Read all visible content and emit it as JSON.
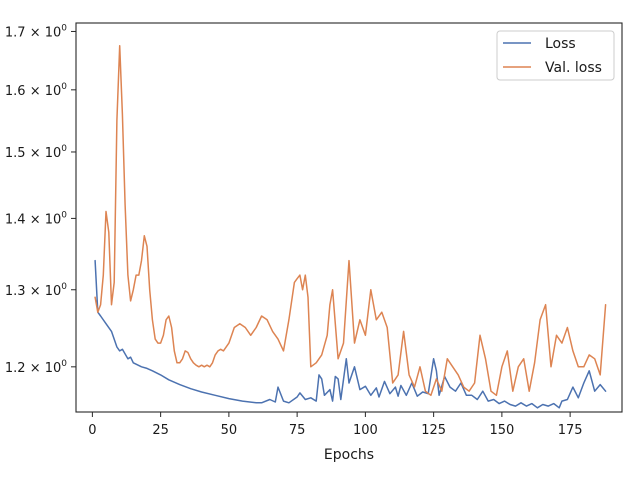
{
  "chart_data": {
    "type": "line",
    "xlabel": "Epochs",
    "ylabel": "",
    "title": "",
    "yscale": "log",
    "xlim": [
      -6,
      194
    ],
    "ylim": [
      1.145,
      1.715
    ],
    "xticks": [
      {
        "value": 0,
        "label": "0"
      },
      {
        "value": 25,
        "label": "25"
      },
      {
        "value": 50,
        "label": "50"
      },
      {
        "value": 75,
        "label": "75"
      },
      {
        "value": 100,
        "label": "100"
      },
      {
        "value": 125,
        "label": "125"
      },
      {
        "value": 150,
        "label": "150"
      },
      {
        "value": 175,
        "label": "175"
      }
    ],
    "yticks": [
      {
        "value": 1.2,
        "base": "1.2",
        "exp": "0"
      },
      {
        "value": 1.3,
        "base": "1.3",
        "exp": "0"
      },
      {
        "value": 1.4,
        "base": "1.4",
        "exp": "0"
      },
      {
        "value": 1.5,
        "base": "1.5",
        "exp": "0"
      },
      {
        "value": 1.6,
        "base": "1.6",
        "exp": "0"
      },
      {
        "value": 1.7,
        "base": "1.7",
        "exp": "0"
      }
    ],
    "legend": {
      "placement": "upper right"
    },
    "grid": false,
    "series": [
      {
        "name": "Loss",
        "color": "#4c72b0",
        "x": [
          1,
          2,
          3,
          5,
          7,
          9,
          10,
          11,
          13,
          14,
          15,
          18,
          20,
          22,
          25,
          28,
          32,
          36,
          40,
          45,
          50,
          55,
          60,
          62,
          65,
          67,
          68,
          70,
          72,
          75,
          76,
          78,
          80,
          82,
          83,
          84,
          85,
          87,
          88,
          89,
          90,
          91,
          93,
          94,
          96,
          98,
          100,
          102,
          104,
          105,
          107,
          109,
          111,
          112,
          113,
          115,
          117,
          119,
          121,
          123,
          125,
          126,
          127,
          129,
          131,
          133,
          135,
          137,
          139,
          141,
          143,
          145,
          147,
          149,
          151,
          153,
          155,
          157,
          159,
          161,
          163,
          165,
          167,
          169,
          171,
          172,
          174,
          176,
          178,
          180,
          182,
          184,
          186,
          188
        ],
        "y": [
          1.34,
          1.27,
          1.265,
          1.255,
          1.245,
          1.225,
          1.22,
          1.222,
          1.21,
          1.212,
          1.205,
          1.2,
          1.198,
          1.195,
          1.19,
          1.184,
          1.178,
          1.173,
          1.169,
          1.165,
          1.161,
          1.158,
          1.156,
          1.156,
          1.16,
          1.157,
          1.175,
          1.158,
          1.156,
          1.163,
          1.168,
          1.16,
          1.162,
          1.158,
          1.19,
          1.185,
          1.165,
          1.172,
          1.158,
          1.188,
          1.185,
          1.16,
          1.21,
          1.18,
          1.2,
          1.172,
          1.176,
          1.165,
          1.174,
          1.163,
          1.182,
          1.167,
          1.175,
          1.164,
          1.177,
          1.165,
          1.18,
          1.164,
          1.169,
          1.167,
          1.21,
          1.195,
          1.165,
          1.188,
          1.175,
          1.17,
          1.18,
          1.165,
          1.165,
          1.16,
          1.17,
          1.158,
          1.16,
          1.155,
          1.158,
          1.154,
          1.152,
          1.156,
          1.152,
          1.155,
          1.15,
          1.154,
          1.152,
          1.155,
          1.15,
          1.158,
          1.16,
          1.175,
          1.162,
          1.18,
          1.195,
          1.17,
          1.178,
          1.17
        ]
      },
      {
        "name": "Val. loss",
        "color": "#dd8452",
        "x": [
          1,
          2,
          3,
          4,
          5,
          6,
          7,
          8,
          9,
          10,
          11,
          12,
          13,
          14,
          15,
          16,
          17,
          18,
          19,
          20,
          21,
          22,
          23,
          24,
          25,
          26,
          27,
          28,
          29,
          30,
          31,
          32,
          33,
          34,
          35,
          36,
          37,
          38,
          39,
          40,
          41,
          42,
          43,
          44,
          45,
          46,
          47,
          48,
          50,
          52,
          54,
          56,
          58,
          60,
          62,
          64,
          66,
          68,
          70,
          72,
          74,
          75,
          76,
          77,
          78,
          79,
          80,
          82,
          84,
          86,
          87,
          88,
          90,
          92,
          94,
          96,
          98,
          100,
          102,
          104,
          106,
          108,
          110,
          112,
          114,
          116,
          118,
          120,
          122,
          124,
          126,
          128,
          130,
          132,
          134,
          136,
          138,
          140,
          142,
          144,
          146,
          148,
          150,
          152,
          154,
          156,
          158,
          160,
          162,
          164,
          166,
          168,
          170,
          172,
          174,
          176,
          178,
          180,
          182,
          184,
          186,
          188
        ],
        "y": [
          1.29,
          1.27,
          1.28,
          1.32,
          1.41,
          1.38,
          1.28,
          1.31,
          1.55,
          1.675,
          1.56,
          1.42,
          1.32,
          1.285,
          1.3,
          1.32,
          1.32,
          1.34,
          1.375,
          1.36,
          1.3,
          1.26,
          1.235,
          1.23,
          1.23,
          1.24,
          1.26,
          1.265,
          1.25,
          1.22,
          1.205,
          1.205,
          1.21,
          1.22,
          1.218,
          1.21,
          1.205,
          1.202,
          1.2,
          1.202,
          1.2,
          1.202,
          1.2,
          1.205,
          1.215,
          1.22,
          1.222,
          1.22,
          1.23,
          1.25,
          1.255,
          1.25,
          1.24,
          1.25,
          1.265,
          1.26,
          1.245,
          1.235,
          1.22,
          1.26,
          1.31,
          1.315,
          1.32,
          1.3,
          1.32,
          1.29,
          1.2,
          1.205,
          1.215,
          1.24,
          1.28,
          1.3,
          1.21,
          1.23,
          1.34,
          1.23,
          1.26,
          1.24,
          1.3,
          1.26,
          1.27,
          1.25,
          1.18,
          1.19,
          1.245,
          1.19,
          1.175,
          1.2,
          1.17,
          1.165,
          1.185,
          1.17,
          1.21,
          1.2,
          1.19,
          1.175,
          1.17,
          1.18,
          1.24,
          1.21,
          1.17,
          1.165,
          1.2,
          1.22,
          1.17,
          1.2,
          1.21,
          1.17,
          1.205,
          1.26,
          1.28,
          1.2,
          1.24,
          1.23,
          1.25,
          1.22,
          1.2,
          1.2,
          1.215,
          1.21,
          1.19,
          1.28
        ]
      }
    ]
  }
}
